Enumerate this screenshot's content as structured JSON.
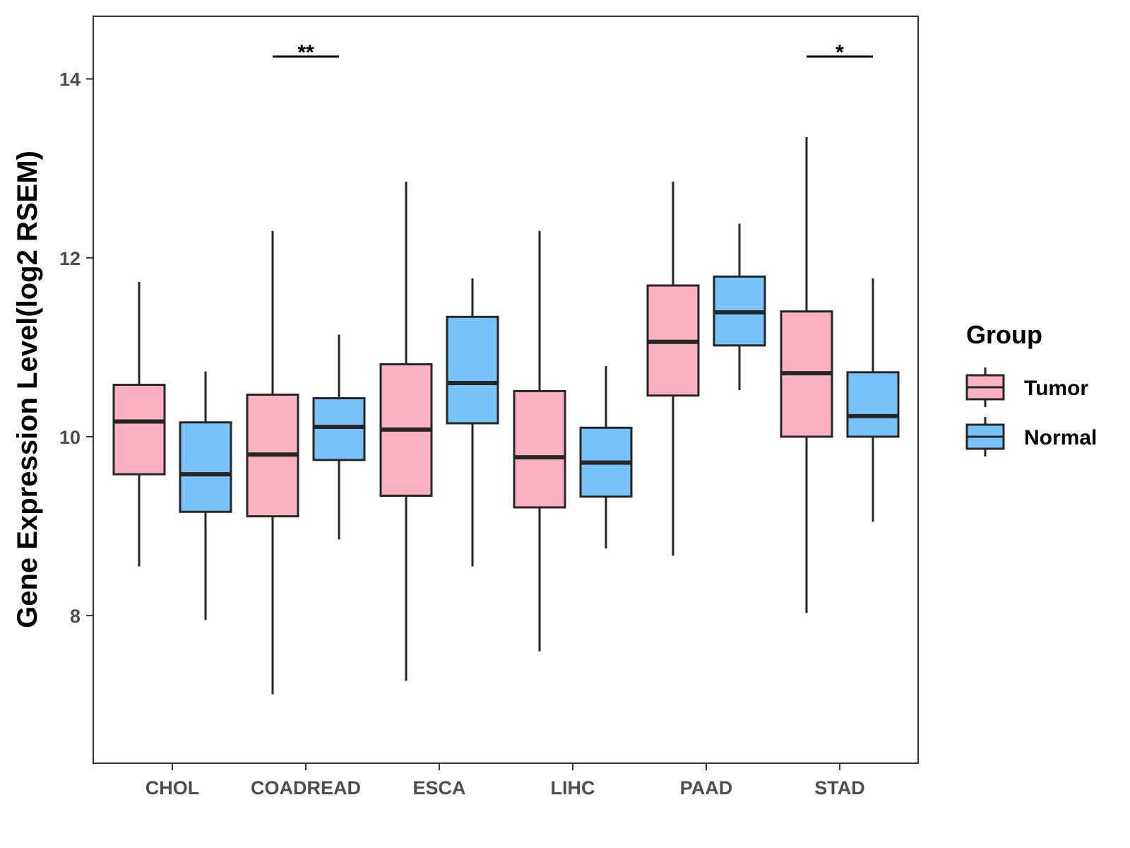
{
  "chart_data": {
    "type": "boxplot",
    "title": "",
    "xlabel": "",
    "ylabel": "Gene Expression Level(log2 RSEM)",
    "ylim": [
      6.35,
      14.7
    ],
    "yticks": [
      8,
      10,
      12,
      14
    ],
    "categories": [
      "CHOL",
      "COADREAD",
      "ESCA",
      "LIHC",
      "PAAD",
      "STAD"
    ],
    "legend": {
      "title": "Group",
      "position": "right",
      "entries": [
        {
          "name": "Tumor",
          "color": "#fbb1c2"
        },
        {
          "name": "Normal",
          "color": "#78c2fa"
        }
      ]
    },
    "series": [
      {
        "name": "Tumor",
        "color": "#fbb1c2",
        "boxes": [
          {
            "min": 8.55,
            "q1": 9.58,
            "median": 10.17,
            "q3": 10.58,
            "max": 11.73
          },
          {
            "min": 7.12,
            "q1": 9.11,
            "median": 9.8,
            "q3": 10.47,
            "max": 12.3
          },
          {
            "min": 7.27,
            "q1": 9.34,
            "median": 10.08,
            "q3": 10.81,
            "max": 12.85
          },
          {
            "min": 7.6,
            "q1": 9.21,
            "median": 9.77,
            "q3": 10.51,
            "max": 12.3
          },
          {
            "min": 8.67,
            "q1": 10.46,
            "median": 11.06,
            "q3": 11.69,
            "max": 12.85
          },
          {
            "min": 8.03,
            "q1": 10.0,
            "median": 10.71,
            "q3": 11.4,
            "max": 13.35
          }
        ]
      },
      {
        "name": "Normal",
        "color": "#78c2fa",
        "boxes": [
          {
            "min": 7.95,
            "q1": 9.16,
            "median": 9.58,
            "q3": 10.16,
            "max": 10.73
          },
          {
            "min": 8.85,
            "q1": 9.74,
            "median": 10.11,
            "q3": 10.43,
            "max": 11.14
          },
          {
            "min": 8.55,
            "q1": 10.15,
            "median": 10.6,
            "q3": 11.34,
            "max": 11.77
          },
          {
            "min": 8.75,
            "q1": 9.33,
            "median": 9.71,
            "q3": 10.1,
            "max": 10.79
          },
          {
            "min": 10.52,
            "q1": 11.02,
            "median": 11.39,
            "q3": 11.79,
            "max": 12.38
          },
          {
            "min": 9.05,
            "q1": 10.0,
            "median": 10.23,
            "q3": 10.72,
            "max": 11.77
          }
        ]
      }
    ],
    "annotations": [
      {
        "category": "COADREAD",
        "label": "**",
        "y": 14.25
      },
      {
        "category": "STAD",
        "label": "*",
        "y": 14.25
      }
    ]
  }
}
